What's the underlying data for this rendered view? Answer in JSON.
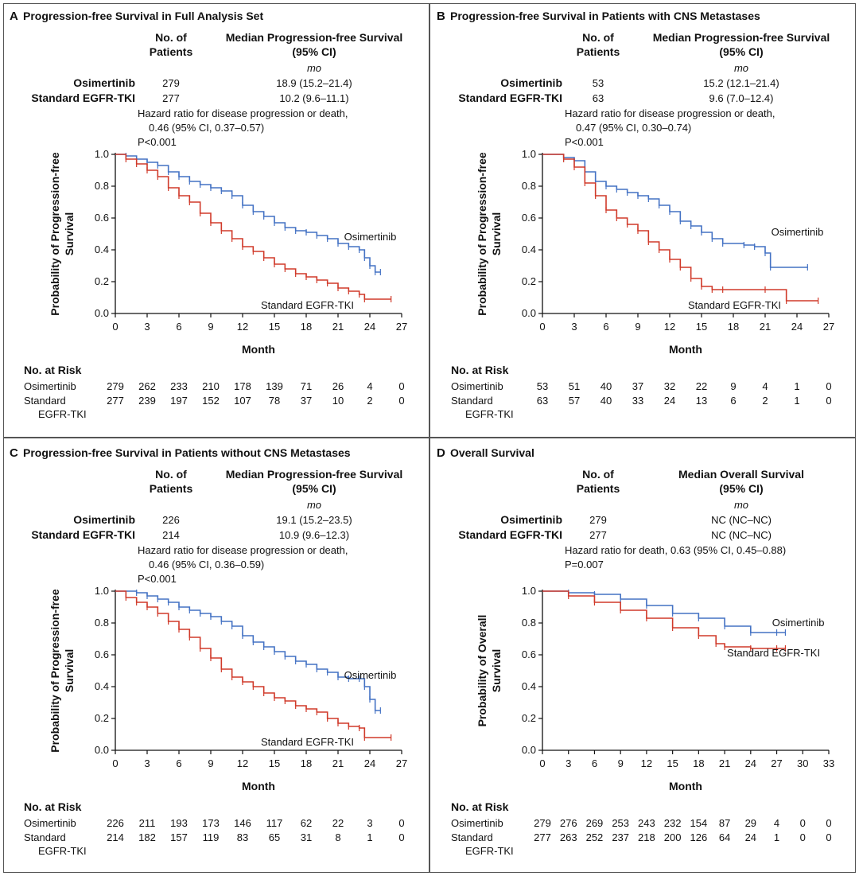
{
  "common": {
    "mo_label": "mo",
    "month_label": "Month",
    "risk_title": "No. at Risk",
    "col_patients": "No. of\nPatients",
    "risk_osi_label": "Osimertinib",
    "risk_std_label": "Standard\nEGFR-TKI",
    "colors": {
      "osimertinib": "#4472c4",
      "standard": "#d03a2a",
      "axis": "#111111"
    }
  },
  "chart_data": [
    {
      "type": "line",
      "panel": "A",
      "title": "Progression-free Survival in Full Analysis Set",
      "col_median": "Median Progression-free Survival\n(95% CI)",
      "ylabel": "Probability of Progression-free\nSurvival",
      "xlabel": "Month",
      "xlim": [
        0,
        27
      ],
      "ylim": [
        0,
        1.0
      ],
      "xticks": [
        0,
        3,
        6,
        9,
        12,
        15,
        18,
        21,
        24,
        27
      ],
      "yticks": [
        "0.0",
        "0.2",
        "0.4",
        "0.6",
        "0.8",
        "1.0"
      ],
      "rows": [
        {
          "name": "Osimertinib",
          "n": "279",
          "median": "18.9 (15.2–21.4)"
        },
        {
          "name": "Standard EGFR-TKI",
          "n": "277",
          "median": "10.2 (9.6–11.1)"
        }
      ],
      "hr_lines": [
        "Hazard ratio for disease progression or death,",
        "0.46 (95% CI, 0.37–0.57)",
        "P<0.001"
      ],
      "series": [
        {
          "name": "Osimertinib",
          "color": "#4472c4",
          "points": [
            [
              0,
              1.0
            ],
            [
              1,
              0.99
            ],
            [
              2,
              0.97
            ],
            [
              3,
              0.95
            ],
            [
              4,
              0.93
            ],
            [
              5,
              0.89
            ],
            [
              6,
              0.86
            ],
            [
              7,
              0.83
            ],
            [
              8,
              0.81
            ],
            [
              9,
              0.79
            ],
            [
              10,
              0.77
            ],
            [
              11,
              0.74
            ],
            [
              12,
              0.68
            ],
            [
              13,
              0.64
            ],
            [
              14,
              0.61
            ],
            [
              15,
              0.57
            ],
            [
              16,
              0.54
            ],
            [
              17,
              0.52
            ],
            [
              18,
              0.51
            ],
            [
              19,
              0.49
            ],
            [
              20,
              0.47
            ],
            [
              21,
              0.44
            ],
            [
              22,
              0.42
            ],
            [
              23,
              0.4
            ],
            [
              23.5,
              0.35
            ],
            [
              24,
              0.3
            ],
            [
              24.5,
              0.26
            ],
            [
              25,
              0.26
            ]
          ]
        },
        {
          "name": "Standard EGFR-TKI",
          "color": "#d03a2a",
          "points": [
            [
              0,
              1.0
            ],
            [
              1,
              0.97
            ],
            [
              2,
              0.94
            ],
            [
              3,
              0.9
            ],
            [
              4,
              0.86
            ],
            [
              5,
              0.79
            ],
            [
              6,
              0.74
            ],
            [
              7,
              0.7
            ],
            [
              8,
              0.63
            ],
            [
              9,
              0.57
            ],
            [
              10,
              0.52
            ],
            [
              11,
              0.47
            ],
            [
              12,
              0.42
            ],
            [
              13,
              0.39
            ],
            [
              14,
              0.35
            ],
            [
              15,
              0.31
            ],
            [
              16,
              0.28
            ],
            [
              17,
              0.25
            ],
            [
              18,
              0.23
            ],
            [
              19,
              0.21
            ],
            [
              20,
              0.19
            ],
            [
              21,
              0.16
            ],
            [
              22,
              0.14
            ],
            [
              23,
              0.12
            ],
            [
              23.5,
              0.09
            ],
            [
              26,
              0.09
            ]
          ]
        }
      ],
      "label_osi": "Osimertinib",
      "label_std": "Standard EGFR-TKI",
      "risk_times": [
        0,
        3,
        6,
        9,
        12,
        15,
        18,
        21,
        24,
        27
      ],
      "risk_osi": [
        "279",
        "262",
        "233",
        "210",
        "178",
        "139",
        "71",
        "26",
        "4",
        "0"
      ],
      "risk_std": [
        "277",
        "239",
        "197",
        "152",
        "107",
        "78",
        "37",
        "10",
        "2",
        "0"
      ]
    },
    {
      "type": "line",
      "panel": "B",
      "title": "Progression-free Survival in Patients with CNS Metastases",
      "col_median": "Median Progression-free Survival\n(95% CI)",
      "ylabel": "Probability of Progression-free\nSurvival",
      "xlabel": "Month",
      "xlim": [
        0,
        27
      ],
      "ylim": [
        0,
        1.0
      ],
      "xticks": [
        0,
        3,
        6,
        9,
        12,
        15,
        18,
        21,
        24,
        27
      ],
      "yticks": [
        "0.0",
        "0.2",
        "0.4",
        "0.6",
        "0.8",
        "1.0"
      ],
      "rows": [
        {
          "name": "Osimertinib",
          "n": "53",
          "median": "15.2 (12.1–21.4)"
        },
        {
          "name": "Standard EGFR-TKI",
          "n": "63",
          "median": "9.6 (7.0–12.4)"
        }
      ],
      "hr_lines": [
        "Hazard ratio for disease progression or death,",
        "0.47 (95% CI, 0.30–0.74)",
        "P<0.001"
      ],
      "series": [
        {
          "name": "Osimertinib",
          "color": "#4472c4",
          "points": [
            [
              0,
              1.0
            ],
            [
              2,
              0.98
            ],
            [
              3,
              0.96
            ],
            [
              4,
              0.89
            ],
            [
              5,
              0.83
            ],
            [
              6,
              0.8
            ],
            [
              7,
              0.78
            ],
            [
              8,
              0.76
            ],
            [
              9,
              0.74
            ],
            [
              10,
              0.72
            ],
            [
              11,
              0.68
            ],
            [
              12,
              0.64
            ],
            [
              13,
              0.58
            ],
            [
              14,
              0.55
            ],
            [
              15,
              0.51
            ],
            [
              16,
              0.47
            ],
            [
              17,
              0.44
            ],
            [
              19,
              0.43
            ],
            [
              20,
              0.42
            ],
            [
              21,
              0.38
            ],
            [
              21.5,
              0.29
            ],
            [
              25,
              0.29
            ]
          ]
        },
        {
          "name": "Standard EGFR-TKI",
          "color": "#d03a2a",
          "points": [
            [
              0,
              1.0
            ],
            [
              2,
              0.97
            ],
            [
              3,
              0.92
            ],
            [
              4,
              0.82
            ],
            [
              5,
              0.74
            ],
            [
              6,
              0.65
            ],
            [
              7,
              0.6
            ],
            [
              8,
              0.56
            ],
            [
              9,
              0.52
            ],
            [
              10,
              0.45
            ],
            [
              11,
              0.4
            ],
            [
              12,
              0.34
            ],
            [
              13,
              0.29
            ],
            [
              14,
              0.22
            ],
            [
              15,
              0.17
            ],
            [
              16,
              0.15
            ],
            [
              17,
              0.15
            ],
            [
              21,
              0.15
            ],
            [
              23,
              0.08
            ],
            [
              26,
              0.08
            ]
          ]
        }
      ],
      "label_osi": "Osimertinib",
      "label_std": "Standard EGFR-TKI",
      "risk_times": [
        0,
        3,
        6,
        9,
        12,
        15,
        18,
        21,
        24,
        27
      ],
      "risk_osi": [
        "53",
        "51",
        "40",
        "37",
        "32",
        "22",
        "9",
        "4",
        "1",
        "0"
      ],
      "risk_std": [
        "63",
        "57",
        "40",
        "33",
        "24",
        "13",
        "6",
        "2",
        "1",
        "0"
      ]
    },
    {
      "type": "line",
      "panel": "C",
      "title": "Progression-free Survival in Patients without CNS Metastases",
      "col_median": "Median Progression-free Survival\n(95% CI)",
      "ylabel": "Probability of Progression-free\nSurvival",
      "xlabel": "Month",
      "xlim": [
        0,
        27
      ],
      "ylim": [
        0,
        1.0
      ],
      "xticks": [
        0,
        3,
        6,
        9,
        12,
        15,
        18,
        21,
        24,
        27
      ],
      "yticks": [
        "0.0",
        "0.2",
        "0.4",
        "0.6",
        "0.8",
        "1.0"
      ],
      "rows": [
        {
          "name": "Osimertinib",
          "n": "226",
          "median": "19.1 (15.2–23.5)"
        },
        {
          "name": "Standard EGFR-TKI",
          "n": "214",
          "median": "10.9 (9.6–12.3)"
        }
      ],
      "hr_lines": [
        "Hazard ratio for disease progression or death,",
        "0.46 (95% CI, 0.36–0.59)",
        "P<0.001"
      ],
      "series": [
        {
          "name": "Osimertinib",
          "color": "#4472c4",
          "points": [
            [
              0,
              1.0
            ],
            [
              2,
              0.99
            ],
            [
              3,
              0.97
            ],
            [
              4,
              0.95
            ],
            [
              5,
              0.93
            ],
            [
              6,
              0.9
            ],
            [
              7,
              0.88
            ],
            [
              8,
              0.86
            ],
            [
              9,
              0.84
            ],
            [
              10,
              0.81
            ],
            [
              11,
              0.78
            ],
            [
              12,
              0.72
            ],
            [
              13,
              0.68
            ],
            [
              14,
              0.65
            ],
            [
              15,
              0.62
            ],
            [
              16,
              0.59
            ],
            [
              17,
              0.56
            ],
            [
              18,
              0.54
            ],
            [
              19,
              0.51
            ],
            [
              20,
              0.49
            ],
            [
              21,
              0.46
            ],
            [
              22,
              0.45
            ],
            [
              23,
              0.45
            ],
            [
              23.5,
              0.4
            ],
            [
              24,
              0.32
            ],
            [
              24.5,
              0.25
            ],
            [
              25,
              0.25
            ]
          ]
        },
        {
          "name": "Standard EGFR-TKI",
          "color": "#d03a2a",
          "points": [
            [
              0,
              1.0
            ],
            [
              1,
              0.96
            ],
            [
              2,
              0.93
            ],
            [
              3,
              0.9
            ],
            [
              4,
              0.86
            ],
            [
              5,
              0.81
            ],
            [
              6,
              0.76
            ],
            [
              7,
              0.71
            ],
            [
              8,
              0.64
            ],
            [
              9,
              0.58
            ],
            [
              10,
              0.51
            ],
            [
              11,
              0.46
            ],
            [
              12,
              0.43
            ],
            [
              13,
              0.4
            ],
            [
              14,
              0.36
            ],
            [
              15,
              0.33
            ],
            [
              16,
              0.31
            ],
            [
              17,
              0.28
            ],
            [
              18,
              0.26
            ],
            [
              19,
              0.24
            ],
            [
              20,
              0.2
            ],
            [
              21,
              0.17
            ],
            [
              22,
              0.15
            ],
            [
              23,
              0.14
            ],
            [
              23.5,
              0.08
            ],
            [
              26,
              0.08
            ]
          ]
        }
      ],
      "label_osi": "Osimertinib",
      "label_std": "Standard EGFR-TKI",
      "risk_times": [
        0,
        3,
        6,
        9,
        12,
        15,
        18,
        21,
        24,
        27
      ],
      "risk_osi": [
        "226",
        "211",
        "193",
        "173",
        "146",
        "117",
        "62",
        "22",
        "3",
        "0"
      ],
      "risk_std": [
        "214",
        "182",
        "157",
        "119",
        "83",
        "65",
        "31",
        "8",
        "1",
        "0"
      ]
    },
    {
      "type": "line",
      "panel": "D",
      "title": "Overall Survival",
      "col_median": "Median Overall Survival\n(95% CI)",
      "ylabel": "Probability of Overall\nSurvival",
      "xlabel": "Month",
      "xlim": [
        0,
        33
      ],
      "ylim": [
        0,
        1.0
      ],
      "xticks": [
        0,
        3,
        6,
        9,
        12,
        15,
        18,
        21,
        24,
        27,
        30,
        33
      ],
      "yticks": [
        "0.0",
        "0.2",
        "0.4",
        "0.6",
        "0.8",
        "1.0"
      ],
      "rows": [
        {
          "name": "Osimertinib",
          "n": "279",
          "median": "NC (NC–NC)"
        },
        {
          "name": "Standard EGFR-TKI",
          "n": "277",
          "median": "NC (NC–NC)"
        }
      ],
      "hr_lines": [
        "Hazard ratio for death, 0.63 (95% CI, 0.45–0.88)",
        "P=0.007"
      ],
      "series": [
        {
          "name": "Osimertinib",
          "color": "#4472c4",
          "points": [
            [
              0,
              1.0
            ],
            [
              3,
              0.99
            ],
            [
              6,
              0.98
            ],
            [
              9,
              0.95
            ],
            [
              12,
              0.91
            ],
            [
              15,
              0.86
            ],
            [
              18,
              0.83
            ],
            [
              21,
              0.78
            ],
            [
              24,
              0.74
            ],
            [
              27,
              0.74
            ],
            [
              28,
              0.74
            ]
          ]
        },
        {
          "name": "Standard EGFR-TKI",
          "color": "#d03a2a",
          "points": [
            [
              0,
              1.0
            ],
            [
              3,
              0.97
            ],
            [
              6,
              0.93
            ],
            [
              9,
              0.88
            ],
            [
              12,
              0.83
            ],
            [
              15,
              0.77
            ],
            [
              18,
              0.72
            ],
            [
              20,
              0.67
            ],
            [
              21,
              0.65
            ],
            [
              24,
              0.64
            ],
            [
              27,
              0.64
            ],
            [
              28,
              0.64
            ]
          ]
        }
      ],
      "label_osi": "Osimertinib",
      "label_std": "Standard EGFR-TKI",
      "risk_times": [
        0,
        3,
        6,
        9,
        12,
        15,
        18,
        21,
        24,
        27,
        30,
        33
      ],
      "risk_osi": [
        "279",
        "276",
        "269",
        "253",
        "243",
        "232",
        "154",
        "87",
        "29",
        "4",
        "0",
        "0"
      ],
      "risk_std": [
        "277",
        "263",
        "252",
        "237",
        "218",
        "200",
        "126",
        "64",
        "24",
        "1",
        "0",
        "0"
      ]
    }
  ]
}
